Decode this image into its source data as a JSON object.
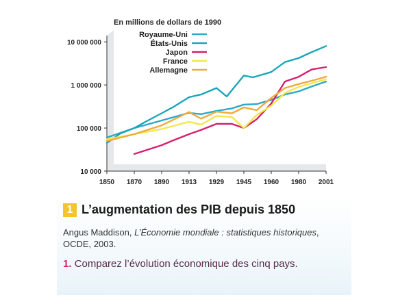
{
  "chart_data": {
    "type": "line",
    "yscale": "log",
    "unit_label": "En millions de dollars de 1990",
    "x": [
      1850,
      1870,
      1890,
      1913,
      1929,
      1945,
      1960,
      1980,
      2001
    ],
    "xticks": [
      "1850",
      "1870",
      "1890",
      "1913",
      "1929",
      "1945",
      "1960",
      "1980",
      "2001"
    ],
    "yticks": [
      {
        "value": 10000,
        "label": "10 000"
      },
      {
        "value": 100000,
        "label": "100 000"
      },
      {
        "value": 1000000,
        "label": "1 000 000"
      },
      {
        "value": 10000000,
        "label": "10 000 000"
      }
    ],
    "ylim": [
      10000,
      14000000
    ],
    "xlim": [
      1850,
      2001
    ],
    "grid": false,
    "legend_position": "top-left",
    "series": [
      {
        "name": "Royaume-Uni",
        "color": "#2aa8c8",
        "points": [
          [
            1850,
            60000
          ],
          [
            1870,
            100000
          ],
          [
            1890,
            150000
          ],
          [
            1913,
            225000
          ],
          [
            1920,
            210000
          ],
          [
            1929,
            250000
          ],
          [
            1938,
            285000
          ],
          [
            1945,
            350000
          ],
          [
            1952,
            360000
          ],
          [
            1960,
            450000
          ],
          [
            1970,
            600000
          ],
          [
            1980,
            710000
          ],
          [
            1990,
            920000
          ],
          [
            2001,
            1200000
          ]
        ]
      },
      {
        "name": "États-Unis",
        "color": "#1aa6b8",
        "points": [
          [
            1850,
            45000
          ],
          [
            1860,
            75000
          ],
          [
            1870,
            100000
          ],
          [
            1880,
            150000
          ],
          [
            1890,
            220000
          ],
          [
            1900,
            310000
          ],
          [
            1913,
            520000
          ],
          [
            1920,
            600000
          ],
          [
            1929,
            850000
          ],
          [
            1935,
            540000
          ],
          [
            1945,
            1650000
          ],
          [
            1950,
            1500000
          ],
          [
            1960,
            2000000
          ],
          [
            1970,
            3400000
          ],
          [
            1980,
            4200000
          ],
          [
            1990,
            5800000
          ],
          [
            2001,
            8000000
          ]
        ]
      },
      {
        "name": "Japon",
        "color": "#d81e6e",
        "points": [
          [
            1870,
            25000
          ],
          [
            1890,
            40000
          ],
          [
            1900,
            52000
          ],
          [
            1913,
            72000
          ],
          [
            1920,
            90000
          ],
          [
            1929,
            125000
          ],
          [
            1938,
            125000
          ],
          [
            1945,
            100000
          ],
          [
            1952,
            160000
          ],
          [
            1960,
            370000
          ],
          [
            1970,
            1200000
          ],
          [
            1980,
            1550000
          ],
          [
            1990,
            2300000
          ],
          [
            2001,
            2600000
          ]
        ]
      },
      {
        "name": "France",
        "color": "#f2e84a",
        "points": [
          [
            1850,
            55000
          ],
          [
            1870,
            72000
          ],
          [
            1890,
            95000
          ],
          [
            1913,
            140000
          ],
          [
            1920,
            120000
          ],
          [
            1929,
            190000
          ],
          [
            1938,
            180000
          ],
          [
            1945,
            100000
          ],
          [
            1952,
            200000
          ],
          [
            1960,
            330000
          ],
          [
            1970,
            650000
          ],
          [
            1980,
            900000
          ],
          [
            1990,
            1100000
          ],
          [
            2001,
            1350000
          ]
        ]
      },
      {
        "name": "Allemagne",
        "color": "#f0aa3c",
        "points": [
          [
            1850,
            50000
          ],
          [
            1870,
            72000
          ],
          [
            1890,
            115000
          ],
          [
            1913,
            235000
          ],
          [
            1920,
            165000
          ],
          [
            1929,
            240000
          ],
          [
            1938,
            220000
          ],
          [
            1945,
            300000
          ],
          [
            1952,
            260000
          ],
          [
            1960,
            500000
          ],
          [
            1970,
            850000
          ],
          [
            1980,
            1050000
          ],
          [
            1990,
            1250000
          ],
          [
            2001,
            1550000
          ]
        ]
      }
    ]
  },
  "caption": {
    "number": "1",
    "title": "L’augmentation des PIB depuis 1850",
    "source_author": "Angus Maddison,",
    "source_work": "L’Économie mondiale : statistiques historiques",
    "source_rest": ", OCDE, 2003.",
    "question_number": "1.",
    "question_text": "Comparez l’évolution économique des cinq pays."
  }
}
